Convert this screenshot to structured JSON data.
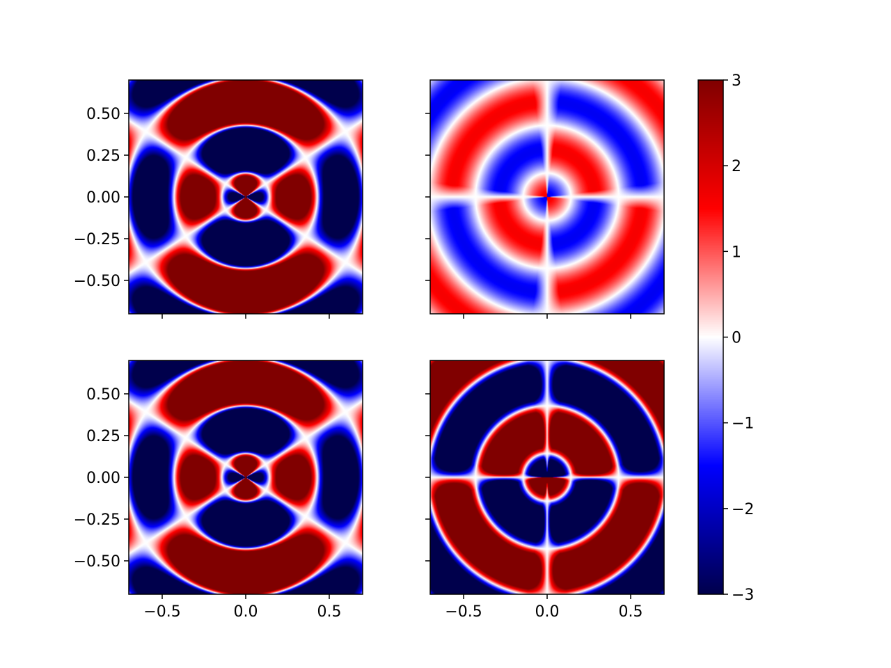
{
  "chart_data": [
    {
      "type": "heatmap",
      "position": "top-left",
      "field": "pattern_a",
      "xlim": [
        -0.7,
        0.7
      ],
      "ylim": [
        -0.7,
        0.7
      ],
      "xticks": [
        -0.5,
        0.0,
        0.5
      ],
      "yticks": [
        0.5,
        0.25,
        0.0,
        -0.25,
        -0.5
      ],
      "ytick_labels": [
        "0.50",
        "0.25",
        "0.00",
        "−0.25",
        "−0.50"
      ],
      "xtick_labels_visible": false,
      "ytick_labels_visible": true,
      "value_range": [
        -3,
        3
      ]
    },
    {
      "type": "heatmap",
      "position": "top-right",
      "field": "pattern_b",
      "xlim": [
        -0.7,
        0.7
      ],
      "ylim": [
        -0.7,
        0.7
      ],
      "xticks": [
        -0.5,
        0.0,
        0.5
      ],
      "yticks": [
        0.5,
        0.25,
        0.0,
        -0.25,
        -0.5
      ],
      "xtick_labels_visible": false,
      "ytick_labels_visible": false,
      "value_range": [
        -3,
        3
      ]
    },
    {
      "type": "heatmap",
      "position": "bottom-left",
      "field": "pattern_a",
      "xlim": [
        -0.7,
        0.7
      ],
      "ylim": [
        -0.7,
        0.7
      ],
      "xticks": [
        -0.5,
        0.0,
        0.5
      ],
      "xtick_labels": [
        "−0.5",
        "0.0",
        "0.5"
      ],
      "yticks": [
        0.5,
        0.25,
        0.0,
        -0.25,
        -0.5
      ],
      "ytick_labels": [
        "0.50",
        "0.25",
        "0.00",
        "−0.25",
        "−0.50"
      ],
      "xtick_labels_visible": true,
      "ytick_labels_visible": true,
      "value_range": [
        -3,
        3
      ]
    },
    {
      "type": "heatmap",
      "position": "bottom-right",
      "field": "pattern_c",
      "xlim": [
        -0.7,
        0.7
      ],
      "ylim": [
        -0.7,
        0.7
      ],
      "xticks": [
        -0.5,
        0.0,
        0.5
      ],
      "xtick_labels": [
        "−0.5",
        "0.0",
        "0.5"
      ],
      "yticks": [
        0.5,
        0.25,
        0.0,
        -0.25,
        -0.5
      ],
      "xtick_labels_visible": true,
      "ytick_labels_visible": false,
      "value_range": [
        -3,
        3
      ]
    }
  ],
  "colorbar": {
    "colormap": "seismic",
    "range": [
      -3,
      3
    ],
    "ticks": [
      3,
      2,
      1,
      0,
      -1,
      -2,
      -3
    ],
    "tick_labels": [
      "3",
      "2",
      "1",
      "0",
      "−1",
      "−2",
      "−3"
    ],
    "colors": {
      "min": "#00004c",
      "low": "#0000ff",
      "mid": "#ffffff",
      "high": "#ff0000",
      "max": "#800000"
    }
  }
}
